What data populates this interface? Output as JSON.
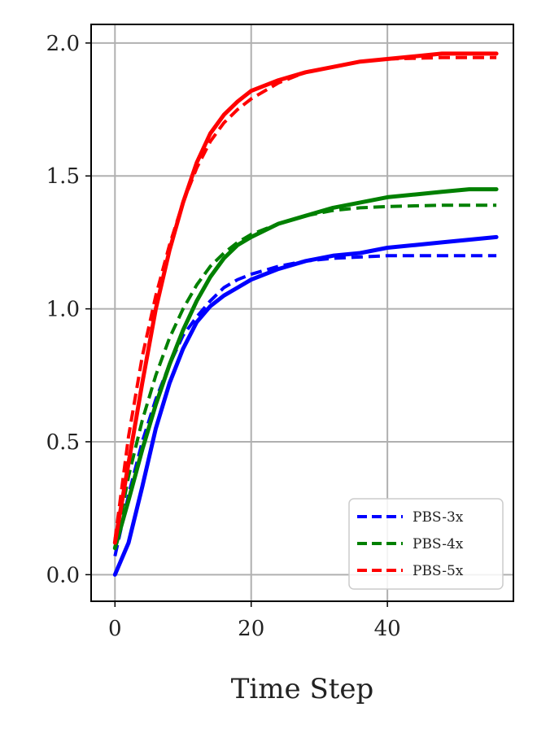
{
  "chart_data": {
    "type": "line",
    "xlabel": "Time Step",
    "ylabel": "",
    "xlim": [
      -3.5,
      58.5
    ],
    "ylim": [
      -0.1,
      2.07
    ],
    "x_ticks": [
      0,
      20,
      40
    ],
    "x_tick_labels": [
      "0",
      "20",
      "40"
    ],
    "y_ticks": [
      0.0,
      0.5,
      1.0,
      1.5,
      2.0
    ],
    "y_tick_labels": [
      "0.0",
      "0.5",
      "1.0",
      "1.5",
      "2.0"
    ],
    "grid": true,
    "legend_position": "lower-right",
    "legend_entries": [
      "PBS-3x",
      "PBS-4x",
      "PBS-5x"
    ],
    "series": [
      {
        "name": "PBS-3x",
        "style": "dashed",
        "color": "#0000ff",
        "x": [
          0,
          2,
          4,
          6,
          8,
          10,
          12,
          14,
          16,
          18,
          20,
          24,
          28,
          32,
          36,
          40,
          48,
          56
        ],
        "y": [
          0.07,
          0.3,
          0.5,
          0.66,
          0.79,
          0.9,
          0.97,
          1.03,
          1.08,
          1.11,
          1.13,
          1.16,
          1.18,
          1.19,
          1.195,
          1.2,
          1.2,
          1.2
        ]
      },
      {
        "name": "",
        "style": "solid",
        "color": "#0000ff",
        "x": [
          0,
          2,
          4,
          6,
          8,
          10,
          12,
          14,
          16,
          18,
          20,
          24,
          28,
          32,
          36,
          40,
          44,
          48,
          52,
          56
        ],
        "y": [
          0.0,
          0.12,
          0.33,
          0.55,
          0.72,
          0.85,
          0.95,
          1.01,
          1.05,
          1.08,
          1.11,
          1.15,
          1.18,
          1.2,
          1.21,
          1.23,
          1.24,
          1.25,
          1.26,
          1.27
        ]
      },
      {
        "name": "PBS-4x",
        "style": "dashed",
        "color": "#008000",
        "x": [
          0,
          2,
          4,
          6,
          8,
          10,
          12,
          14,
          16,
          18,
          20,
          24,
          28,
          32,
          36,
          40,
          48,
          56
        ],
        "y": [
          0.1,
          0.37,
          0.58,
          0.75,
          0.89,
          1.0,
          1.09,
          1.16,
          1.21,
          1.25,
          1.28,
          1.32,
          1.35,
          1.37,
          1.38,
          1.385,
          1.39,
          1.39
        ]
      },
      {
        "name": "",
        "style": "solid",
        "color": "#008000",
        "x": [
          0,
          2,
          4,
          6,
          8,
          10,
          12,
          14,
          16,
          18,
          20,
          24,
          28,
          32,
          36,
          40,
          44,
          48,
          52,
          56
        ],
        "y": [
          0.1,
          0.28,
          0.47,
          0.64,
          0.79,
          0.92,
          1.03,
          1.12,
          1.19,
          1.24,
          1.27,
          1.32,
          1.35,
          1.38,
          1.4,
          1.42,
          1.43,
          1.44,
          1.45,
          1.45
        ]
      },
      {
        "name": "PBS-5x",
        "style": "dashed",
        "color": "#ff0000",
        "x": [
          0,
          2,
          4,
          6,
          8,
          10,
          12,
          14,
          16,
          18,
          20,
          24,
          28,
          32,
          36,
          40,
          48,
          56
        ],
        "y": [
          0.13,
          0.52,
          0.82,
          1.05,
          1.24,
          1.4,
          1.53,
          1.63,
          1.7,
          1.75,
          1.79,
          1.85,
          1.89,
          1.91,
          1.93,
          1.94,
          1.945,
          1.945
        ]
      },
      {
        "name": "",
        "style": "solid",
        "color": "#ff0000",
        "x": [
          0,
          2,
          4,
          6,
          8,
          10,
          12,
          14,
          16,
          18,
          20,
          24,
          28,
          32,
          36,
          40,
          44,
          48,
          52,
          56
        ],
        "y": [
          0.12,
          0.42,
          0.72,
          1.0,
          1.22,
          1.4,
          1.55,
          1.66,
          1.73,
          1.78,
          1.82,
          1.86,
          1.89,
          1.91,
          1.93,
          1.94,
          1.95,
          1.96,
          1.96,
          1.96
        ]
      }
    ]
  }
}
